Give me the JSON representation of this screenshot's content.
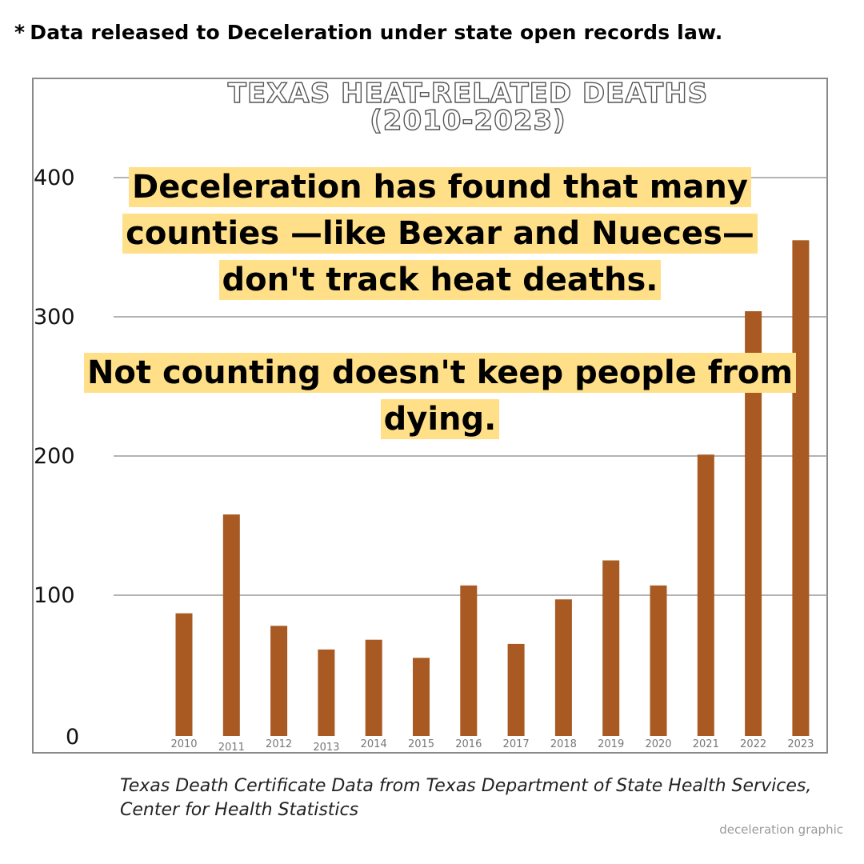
{
  "note": {
    "star": "*",
    "text": "Data released to Deceleration under state open records law."
  },
  "overlay": {
    "line1": "Deceleration has found that many counties —like Bexar and Nueces—don't track heat deaths.",
    "line2": "Not counting doesn't keep people from dying."
  },
  "source": "Texas Death Certificate Data from Texas Department of State Health Services, Center for Health Statistics",
  "credit": "deceleration graphic",
  "colors": {
    "bar": "#a85a22",
    "grid": "#9a9a9a",
    "highlight": "#ffe089"
  },
  "chart_data": {
    "type": "bar",
    "title": "TEXAS HEAT-RELATED DEATHS",
    "subtitle": "(2010-2023)",
    "categories": [
      "2010",
      "2011",
      "2012",
      "2013",
      "2014",
      "2015",
      "2016",
      "2017",
      "2018",
      "2019",
      "2020",
      "2021",
      "2022",
      "2023"
    ],
    "values": [
      87,
      158,
      78,
      61,
      68,
      55,
      107,
      65,
      97,
      125,
      107,
      201,
      304,
      355
    ],
    "yticks": [
      0,
      100,
      200,
      300,
      400
    ],
    "ylim": [
      0,
      400
    ],
    "grid": true,
    "legend": "none"
  }
}
